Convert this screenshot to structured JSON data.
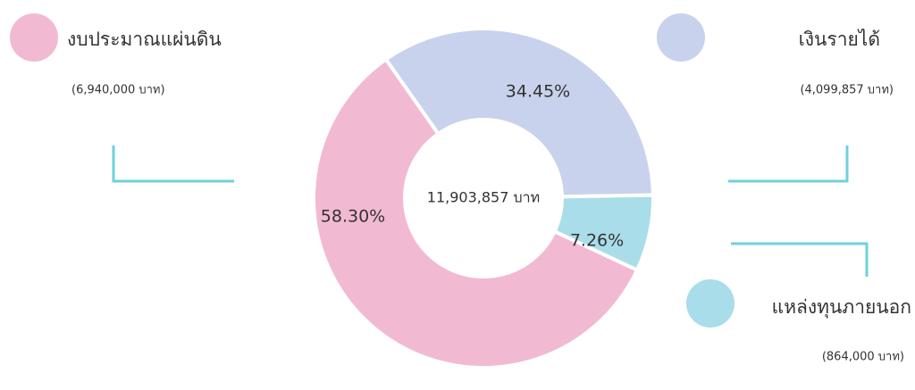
{
  "chart_data": {
    "type": "donut",
    "center_label": "11,903,857 บาท",
    "categories": [
      "งบประมาณแผ่นดิน",
      "เงินรายได้",
      "แหล่งทุนภายนอก"
    ],
    "amount_labels": [
      "(6,940,000 บาท)",
      "(4,099,857 บาท)",
      "(864,000 บาท)"
    ],
    "values": [
      58.3,
      34.45,
      7.26
    ],
    "value_labels": [
      "58.30%",
      "34.45%",
      "7.26%"
    ],
    "colors": [
      "#f2b9d3",
      "#c8d2ec",
      "#a9dde9"
    ]
  }
}
